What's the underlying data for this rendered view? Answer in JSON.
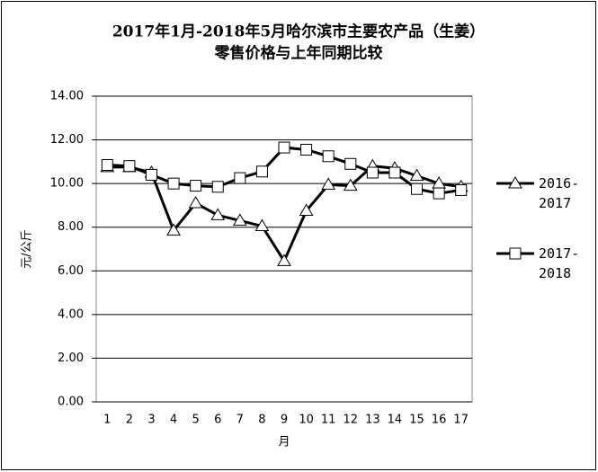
{
  "chart_data": {
    "type": "line",
    "title_lines": [
      "2017年1月-2018年5月哈尔滨市主要农产品（生姜）",
      "零售价格与上年同期比较"
    ],
    "x_label": "月",
    "y_label": "元/公斤",
    "categories": [
      "1",
      "2",
      "3",
      "4",
      "5",
      "6",
      "7",
      "8",
      "9",
      "10",
      "11",
      "12",
      "13",
      "14",
      "15",
      "16",
      "17"
    ],
    "series": [
      {
        "name": "2016-2017",
        "color": "#000000",
        "marker": "triangle",
        "values": [
          10.75,
          10.75,
          10.5,
          7.85,
          9.1,
          8.55,
          8.3,
          8.05,
          6.45,
          8.75,
          9.95,
          9.9,
          10.8,
          10.7,
          10.35,
          10.0,
          9.85
        ]
      },
      {
        "name": "2017-2018",
        "color": "#000000",
        "marker": "square",
        "values": [
          10.85,
          10.8,
          10.4,
          10.0,
          9.9,
          9.85,
          10.25,
          10.55,
          11.65,
          11.55,
          11.25,
          10.9,
          10.5,
          10.5,
          9.75,
          9.55,
          9.7
        ]
      }
    ],
    "ylim": [
      0,
      14
    ],
    "yticks": [
      {
        "value": 0,
        "label": "0.00"
      },
      {
        "value": 2,
        "label": "2.00"
      },
      {
        "value": 4,
        "label": "4.00"
      },
      {
        "value": 6,
        "label": "6.00"
      },
      {
        "value": 8,
        "label": "8.00"
      },
      {
        "value": 10,
        "label": "10.00"
      },
      {
        "value": 12,
        "label": "12.00"
      },
      {
        "value": 14,
        "label": "14.00"
      }
    ],
    "grid": true,
    "legend": "right"
  }
}
